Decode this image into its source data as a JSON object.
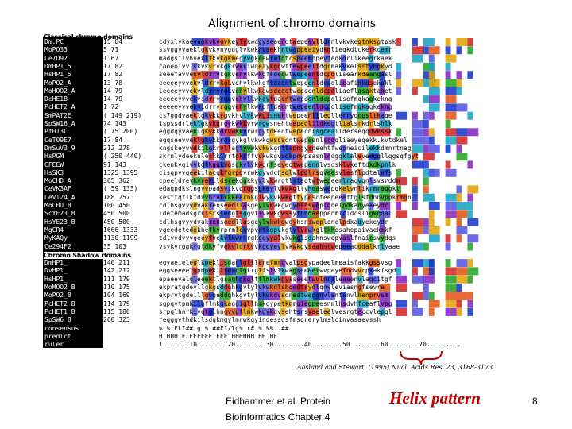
{
  "slide": {
    "title": "Alignment of chromo domains",
    "footer_left": [
      "Eidhammer et al. Protein",
      "Bioinformatics Chapter 4"
    ],
    "annotation": "Helix pattern",
    "page_number": "8",
    "citation": "Aasland and Stewart, (1995) Nucl. Acids Res. 23, 3168-3173"
  },
  "alignment": {
    "sections": [
      {
        "label": "Classical chromo domains",
        "row_start": 0
      },
      {
        "label": "Chromo Shadow domains",
        "row_start": 27
      }
    ],
    "rows": [
      {
        "name": "Dm.PC",
        "range": "15   84"
      },
      {
        "name": "MoPO33",
        "range": "5   71"
      },
      {
        "name": "Ce7O92",
        "range": "1   67"
      },
      {
        "name": "DmHP1_5",
        "range": "17   82"
      },
      {
        "name": "HsHP1_5",
        "range": "17   82"
      },
      {
        "name": "MoPO2_A",
        "range": "13   78"
      },
      {
        "name": "MoHOO2_A",
        "range": "14   79"
      },
      {
        "name": "DcHE1B",
        "range": "14   79"
      },
      {
        "name": "PcHET2_A",
        "range": "1   72"
      },
      {
        "name": "SmPAT2E",
        "range": "( 149  219)"
      },
      {
        "name": "SpSW16_A",
        "range": "74  143"
      },
      {
        "name": "Pf013C",
        "range": "( 75  200)"
      },
      {
        "name": "CeT09E7",
        "range": "17   84"
      },
      {
        "name": "DmSuV3_9",
        "range": "212  278"
      },
      {
        "name": "HsPGM",
        "range": "( 250  440)"
      },
      {
        "name": "CFEEW",
        "range": "91  143"
      },
      {
        "name": "HsSK3",
        "range": "1325 1395"
      },
      {
        "name": "MoCHD_A",
        "range": "365  362"
      },
      {
        "name": "CeVK3AF",
        "range": "( 59  133)"
      },
      {
        "name": "CeVT24_A",
        "range": "188  257"
      },
      {
        "name": "MoCHD_B",
        "range": "100  450"
      },
      {
        "name": "ScYE23_B",
        "range": "450  500"
      },
      {
        "name": "HsYE23_B",
        "range": "450  500"
      },
      {
        "name": "MgCR4",
        "range": "1666 1333"
      },
      {
        "name": "MyKAQy",
        "range": "1130 1199"
      },
      {
        "name": "Ce294F2",
        "range": "35  103"
      },
      {
        "name": "",
        "range": ""
      },
      {
        "name": "DmHP1_",
        "range": "140  211"
      },
      {
        "name": "DvHP1_",
        "range": "142  212"
      },
      {
        "name": "HsHP1_",
        "range": "111  179"
      },
      {
        "name": "MoMOO2_B",
        "range": "110  175"
      },
      {
        "name": "MoPO2_B",
        "range": "104  169"
      },
      {
        "name": "PcHET2_B",
        "range": "114  179"
      },
      {
        "name": "PcHET1_B",
        "range": "115  180"
      },
      {
        "name": "SpSW6_B",
        "range": "260  323"
      },
      {
        "name": "consensus",
        "range": ""
      },
      {
        "name": "predict",
        "range": ""
      },
      {
        "name": "ruler",
        "range": ""
      }
    ],
    "consensus_line": "%  % FLI##      g %  ##FI/lg%     r#    % %%..##",
    "predict_line": "H HHH E       EEEEEE           EEE   HHHHHH HH HF",
    "ruler_line": "1.......10........20........30........40........50........60........70.........",
    "sequences": [
      "cdyxlvkaevagkvkvgvkeylvkwdgyseaendtwepeevlldrnlvkvkeqtnksgtpsk",
      "ssvggvvaeklgkvkvnygdglvkwknvaekhntwqppeaiydkmlieqkdtckerkcemr",
      "madgsilvhveklfkvkgkmegyvgkeewrafdtcspaemdpevfeqkdrlikeegrkaek",
      "cooeolvvlkkvkvrvkgkrwkkiwqelykgdwttewpeelidgrmakvkelsrtyhgkyd",
      "seeefavvekvldrrvkgkvehylkwkgfsdedwtwepeenldcpdlisearkdeangasl",
      "eeeeeyvvekvldrrvkgkvehylkwkgftdadntwepeenldcpelieafinkdsekpkl",
      "leeeeyvvekvldrrvrgkvehylkwkgwsdeddtwepeenldcpdliaeflqsqktahet",
      "eeeeeyvvekvidrrvrgqvehylkwkgytdadntwepeenldcpdlisefmqkagkekng",
      "eeeeeyvvekvidrrvrgqvehylkwkgftdadntwepeenldcpdlisefmqkagkekng",
      "cs7ggdvaeklgkvkkrgvkhvlvkwkgisnektwepeenllleqllerrvqnpsltkaqe",
      "ispssdrleklgkvkqrgvkwkkvrwrgwsnehtwepeqlildkegtlialsrkdrlshlk",
      "eggdqyvaeklgkvkkdrvwkkvrwrgytdkedtwepecnlsgceaiiderseqqdvkssk",
      "egqseevveklgkvkkrgsgykglvkwkgwsdadntwepeenlscqqliaeyeqekk.kvtdkel",
      "kngskeyvvdkilgkrvllagtyvwkvkwkgnttspngysdeehtfwepneicilekkdmnrtnag",
      "skrnlydeeknleskkirrtgkrffvvkwkgvsdkpnwpsasnlndggkleleveegqllqgsqfgyt",
      "ckenkvgivvkdtkgqkvqsgkvlvkwgrfseyedtwepennlvsdsklvkeftdkdkpnlk",
      "cisqpvvgeekilacqkfqrpqvrwkgyvdchsdlwlpdlrsqveesvlesflpdtalefs",
      "cpeeldreykvvekildsrekggkkyvlvkwrgtlsteqtwtwepeemlraqvqnlsvsrddm",
      "edaqpdkslngvvpadsvikvqrqgsgkeylvkwkgltyheaswepqkelvnlikrmraqgkt",
      "kesttqfikfdvvhrvkrkkeernkglwykvkwkgttypescteepeeeftglsfdnnvppkrmgn",
      "cdlhsgvyydvakrenseedllasgeylvkwkgwgyhsnsweplqnelpdkaqyekeydr",
      "ldefemadsgrkisrsledgtsggvflvkwkgwssyfhndaeppenmlcldcsligkqqal",
      "cdlhsgvyydvakrenseedllasgeylvkwkgwgyhsnsweplqnelpdkaqyekeydr",
      "vgeedetedekhefkvrprmlcsvpvdtkgpvkgtylvrwkgltkhesahepaivaekmkf",
      "tdlvvdvyvgeeyfvekvlkwrtrgkgdyyalvkwkglsdahnswepvaslfnaicsvydqs",
      "vsykvrggkrgtdkyfvekvldrkvvkgqyeylvkwkgysaahntwepeeacddalkrlyaae",
      "",
      "egyaeieleglkpeklisdanlgttlarefmrqvalpsgypadeelmeaisfakkgssvsg",
      "eggseeeelgpdpekilsdaqlgtrglfslvlkwkgsseeetwvpeyefndvvrpkakfsgd",
      "epaeevalgleeektlgsaqhgkgltflmkwkgysseeetwvlnrsleaeenvlaqcitgf",
      "ekpratgdevllgkgsddqhkgvtylvkwkdlshqedtsydlqnvleviasngfsevre",
      "ekprvtgdeillgvgeddqhkgvtylvkwkdvsdnedtwepgnvlentsnvlhenprvsm",
      "sgpqvtpmkilqflmkgkaggiqllhmkgypetkmmqiegpeesnmlhsdvhfceaflvpg",
      "srpqlhnrkivqtqlhngvvgflmkwkgykgvsehtsrsvaeleelvesrgteccvlepgl",
      "regggvthdkilsdgkmgylmrwkgyinqessdsfmsgrerylmslcinvasaevssh",
      "%  % FLI##      g %  ##FI/lg%     r#    % %%..##",
      "H HHH E       EEEEEE           EEE   HHHHHH HH HF",
      "1.......10........20........30........40........50........60........70........."
    ]
  }
}
